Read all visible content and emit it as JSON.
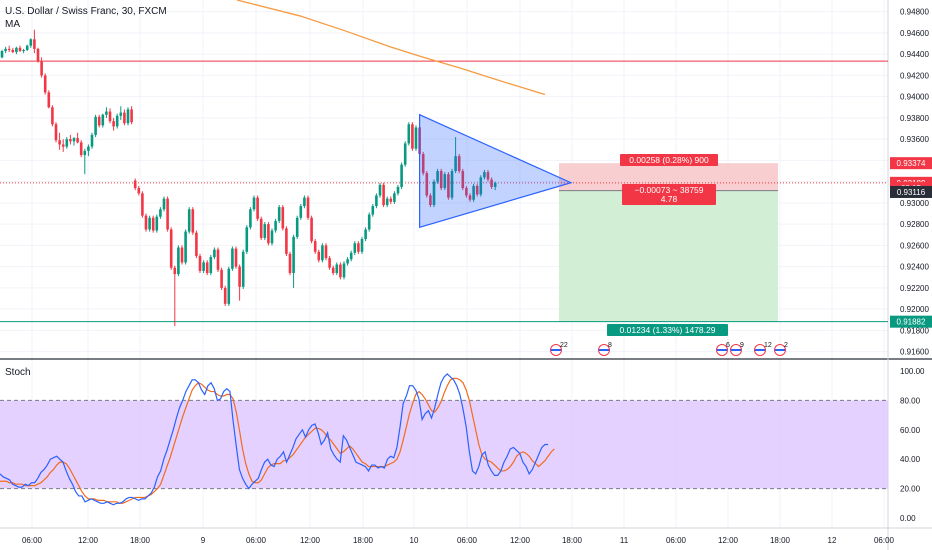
{
  "header": {
    "symbol_title": "U.S. Dollar / Swiss Franc, 30, FXCM",
    "ma_label": "MA"
  },
  "indicator": {
    "label": "Stoch"
  },
  "price_axis": {
    "labels": [
      "0.94800",
      "0.94600",
      "0.94400",
      "0.94200",
      "0.94000",
      "0.93800",
      "0.93600",
      "0.93400",
      "0.93200",
      "0.93000",
      "0.92800",
      "0.92600",
      "0.92400",
      "0.92200",
      "0.92000",
      "0.91800",
      "0.91600"
    ],
    "badges": [
      {
        "text": "0.93374",
        "color": "#f23645",
        "price": 0.93374
      },
      {
        "text": "0.93189",
        "color": "#f23645",
        "price": 0.93189
      },
      {
        "text": "08:15",
        "color": "#f23645",
        "price": 0.9314
      },
      {
        "text": "0.93116",
        "color": "#2a2e39",
        "price": 0.93103
      },
      {
        "text": "0.91882",
        "color": "#089981",
        "price": 0.91882
      }
    ]
  },
  "stoch_axis": {
    "labels": [
      "100.00",
      "80.00",
      "60.00",
      "40.00",
      "20.00",
      "0.00"
    ],
    "upper_band": 80,
    "lower_band": 20
  },
  "time_axis": {
    "labels": [
      "06:00",
      "12:00",
      "18:00",
      "9",
      "06:00",
      "12:00",
      "18:00",
      "10",
      "06:00",
      "12:00",
      "18:00",
      "11",
      "06:00",
      "12:00",
      "18:00",
      "12",
      "06:00"
    ]
  },
  "position": {
    "entry": 0.93116,
    "stop": 0.93374,
    "target": 0.91882,
    "stop_label": "0.00258 (0.28%) 900",
    "info_label": "−0.00073 ~ 38759",
    "ratio_label": "4.78",
    "target_label": "0.01234 (1.33%) 1478.29"
  },
  "horizontal_lines": {
    "resistance": 0.94335,
    "dotted_price": 0.93189
  },
  "events": [
    {
      "kind": "us",
      "count": "22"
    },
    {
      "kind": "us",
      "count": "8"
    },
    {
      "kind": "us",
      "count": "6"
    },
    {
      "kind": "us",
      "count": "9"
    },
    {
      "kind": "us",
      "count": "12"
    },
    {
      "kind": "us",
      "count": "2"
    }
  ],
  "colors": {
    "up": "#089981",
    "down": "#f23645",
    "ma": "#f59b42",
    "k_line": "#2962ff",
    "d_line": "#f26b1c",
    "band_fill": "#e1c9ff",
    "triangle": "#2962ff",
    "stop_zone": "#f7c6c9",
    "target_zone": "#cdeccf"
  },
  "chart_data": {
    "type": "candlestick",
    "timeframe": "30",
    "ohlc": [
      [
        0.9437,
        0.9444,
        0.9436,
        0.9443
      ],
      [
        0.9443,
        0.9447,
        0.9441,
        0.9445
      ],
      [
        0.9445,
        0.9448,
        0.9442,
        0.9444
      ],
      [
        0.9444,
        0.9446,
        0.9441,
        0.9442
      ],
      [
        0.9442,
        0.9447,
        0.944,
        0.9446
      ],
      [
        0.9446,
        0.9448,
        0.9442,
        0.9443
      ],
      [
        0.9443,
        0.9445,
        0.9441,
        0.9444
      ],
      [
        0.9444,
        0.9449,
        0.9443,
        0.9448
      ],
      [
        0.9448,
        0.9455,
        0.9446,
        0.9454
      ],
      [
        0.9454,
        0.9463,
        0.9441,
        0.9445
      ],
      [
        0.9445,
        0.9446,
        0.9432,
        0.9433
      ],
      [
        0.9433,
        0.9437,
        0.9418,
        0.942
      ],
      [
        0.942,
        0.9422,
        0.9402,
        0.9404
      ],
      [
        0.9404,
        0.9406,
        0.9389,
        0.939
      ],
      [
        0.939,
        0.9392,
        0.9372,
        0.9374
      ],
      [
        0.9374,
        0.9376,
        0.9357,
        0.9359
      ],
      [
        0.9359,
        0.9366,
        0.935,
        0.9355
      ],
      [
        0.9355,
        0.936,
        0.9348,
        0.9353
      ],
      [
        0.9353,
        0.9362,
        0.9351,
        0.936
      ],
      [
        0.936,
        0.9364,
        0.9355,
        0.9358
      ],
      [
        0.9358,
        0.9362,
        0.9354,
        0.9361
      ],
      [
        0.9361,
        0.9366,
        0.9356,
        0.9357
      ],
      [
        0.9357,
        0.9359,
        0.9343,
        0.9345
      ],
      [
        0.9345,
        0.9351,
        0.9327,
        0.9349
      ],
      [
        0.9349,
        0.9355,
        0.9344,
        0.9353
      ],
      [
        0.9353,
        0.9366,
        0.9351,
        0.9364
      ],
      [
        0.9364,
        0.9383,
        0.9362,
        0.9381
      ],
      [
        0.9381,
        0.9383,
        0.9371,
        0.9373
      ],
      [
        0.9373,
        0.9384,
        0.9371,
        0.9383
      ],
      [
        0.9383,
        0.939,
        0.938,
        0.9386
      ],
      [
        0.9386,
        0.9389,
        0.9375,
        0.9377
      ],
      [
        0.9377,
        0.938,
        0.9368,
        0.9372
      ],
      [
        0.9372,
        0.9384,
        0.937,
        0.9382
      ],
      [
        0.9382,
        0.9391,
        0.9378,
        0.9385
      ],
      [
        0.9385,
        0.9388,
        0.9373,
        0.9375
      ],
      [
        0.9375,
        0.939,
        0.9373,
        0.9388
      ],
      [
        0.9388,
        0.9391,
        0.9374,
        0.9376
      ],
      [
        0.9321,
        0.9323,
        0.9312,
        0.9314
      ],
      [
        0.9314,
        0.9316,
        0.9307,
        0.9309
      ],
      [
        0.9309,
        0.9311,
        0.9286,
        0.9288
      ],
      [
        0.9288,
        0.929,
        0.9273,
        0.9275
      ],
      [
        0.9275,
        0.9288,
        0.9273,
        0.9286
      ],
      [
        0.9286,
        0.9288,
        0.9272,
        0.9274
      ],
      [
        0.9274,
        0.9289,
        0.9272,
        0.9287
      ],
      [
        0.9287,
        0.9296,
        0.9285,
        0.9294
      ],
      [
        0.9294,
        0.9306,
        0.9292,
        0.9304
      ],
      [
        0.9304,
        0.9306,
        0.9273,
        0.9275
      ],
      [
        0.9275,
        0.9277,
        0.9237,
        0.9239
      ],
      [
        0.9239,
        0.9241,
        0.9184,
        0.9233
      ],
      [
        0.9233,
        0.926,
        0.9231,
        0.9258
      ],
      [
        0.9258,
        0.926,
        0.9242,
        0.9244
      ],
      [
        0.9244,
        0.9275,
        0.9242,
        0.9273
      ],
      [
        0.9273,
        0.9296,
        0.9271,
        0.9294
      ],
      [
        0.9294,
        0.9296,
        0.927,
        0.9272
      ],
      [
        0.9272,
        0.9274,
        0.9248,
        0.925
      ],
      [
        0.925,
        0.9252,
        0.9234,
        0.9236
      ],
      [
        0.9236,
        0.9246,
        0.9234,
        0.9244
      ],
      [
        0.9244,
        0.9246,
        0.9232,
        0.9234
      ],
      [
        0.9234,
        0.9251,
        0.9232,
        0.9249
      ],
      [
        0.9249,
        0.9258,
        0.9247,
        0.9256
      ],
      [
        0.9256,
        0.9258,
        0.9235,
        0.9237
      ],
      [
        0.9237,
        0.9239,
        0.9218,
        0.922
      ],
      [
        0.922,
        0.9222,
        0.9203,
        0.9205
      ],
      [
        0.9205,
        0.924,
        0.9203,
        0.9238
      ],
      [
        0.9238,
        0.9259,
        0.9236,
        0.9257
      ],
      [
        0.9257,
        0.9259,
        0.9238,
        0.924
      ],
      [
        0.924,
        0.9242,
        0.9208,
        0.9221
      ],
      [
        0.9221,
        0.9256,
        0.9219,
        0.9254
      ],
      [
        0.9254,
        0.9279,
        0.9252,
        0.9277
      ],
      [
        0.9277,
        0.9296,
        0.9275,
        0.9294
      ],
      [
        0.9294,
        0.9307,
        0.9292,
        0.9305
      ],
      [
        0.9305,
        0.9307,
        0.9283,
        0.9285
      ],
      [
        0.9285,
        0.9287,
        0.9265,
        0.9267
      ],
      [
        0.9267,
        0.9282,
        0.9265,
        0.928
      ],
      [
        0.928,
        0.9282,
        0.926,
        0.9262
      ],
      [
        0.9262,
        0.9276,
        0.926,
        0.9274
      ],
      [
        0.9274,
        0.9285,
        0.9272,
        0.9283
      ],
      [
        0.9283,
        0.9298,
        0.9281,
        0.9296
      ],
      [
        0.9296,
        0.9298,
        0.9274,
        0.9276
      ],
      [
        0.9276,
        0.9278,
        0.925,
        0.9252
      ],
      [
        0.9252,
        0.9254,
        0.9232,
        0.9234
      ],
      [
        0.9234,
        0.927,
        0.922,
        0.9268
      ],
      [
        0.9268,
        0.9288,
        0.9266,
        0.9286
      ],
      [
        0.9286,
        0.9299,
        0.9284,
        0.9297
      ],
      [
        0.9297,
        0.9307,
        0.9295,
        0.9305
      ],
      [
        0.9305,
        0.9307,
        0.9284,
        0.9286
      ],
      [
        0.9286,
        0.9288,
        0.9262,
        0.9264
      ],
      [
        0.9264,
        0.9266,
        0.9252,
        0.9254
      ],
      [
        0.9254,
        0.9256,
        0.9244,
        0.9246
      ],
      [
        0.9246,
        0.9262,
        0.9244,
        0.926
      ],
      [
        0.926,
        0.9262,
        0.9246,
        0.9248
      ],
      [
        0.9248,
        0.925,
        0.9237,
        0.9239
      ],
      [
        0.9239,
        0.9241,
        0.9232,
        0.9234
      ],
      [
        0.9234,
        0.9244,
        0.9232,
        0.9242
      ],
      [
        0.9242,
        0.9244,
        0.9228,
        0.923
      ],
      [
        0.923,
        0.9245,
        0.9228,
        0.9243
      ],
      [
        0.9243,
        0.9249,
        0.9241,
        0.9247
      ],
      [
        0.9247,
        0.9255,
        0.9245,
        0.9253
      ],
      [
        0.9253,
        0.9264,
        0.9251,
        0.9262
      ],
      [
        0.9262,
        0.9264,
        0.9252,
        0.9254
      ],
      [
        0.9254,
        0.9268,
        0.9252,
        0.9266
      ],
      [
        0.9266,
        0.9277,
        0.9264,
        0.9275
      ],
      [
        0.9275,
        0.9291,
        0.9273,
        0.9289
      ],
      [
        0.9289,
        0.9299,
        0.9287,
        0.9297
      ],
      [
        0.9297,
        0.9309,
        0.9295,
        0.9307
      ],
      [
        0.9307,
        0.9319,
        0.9305,
        0.9317
      ],
      [
        0.9317,
        0.9319,
        0.9296,
        0.9298
      ],
      [
        0.9298,
        0.9306,
        0.9296,
        0.9304
      ],
      [
        0.9304,
        0.9306,
        0.9299,
        0.9301
      ],
      [
        0.9301,
        0.9311,
        0.9299,
        0.9309
      ],
      [
        0.9309,
        0.9317,
        0.9307,
        0.9315
      ],
      [
        0.9315,
        0.9338,
        0.9313,
        0.9336
      ],
      [
        0.9336,
        0.9358,
        0.9334,
        0.9356
      ],
      [
        0.9356,
        0.9376,
        0.9354,
        0.9374
      ],
      [
        0.9374,
        0.9376,
        0.9349,
        0.9351
      ],
      [
        0.9351,
        0.9373,
        0.9349,
        0.9371
      ],
      [
        0.9371,
        0.9373,
        0.9344,
        0.9346
      ],
      [
        0.9346,
        0.9348,
        0.9326,
        0.9328
      ],
      [
        0.9328,
        0.933,
        0.9305,
        0.9307
      ],
      [
        0.9307,
        0.9309,
        0.9296,
        0.9298
      ],
      [
        0.9298,
        0.9322,
        0.9296,
        0.932
      ],
      [
        0.932,
        0.9332,
        0.9318,
        0.933
      ],
      [
        0.933,
        0.9332,
        0.9312,
        0.9314
      ],
      [
        0.9314,
        0.9329,
        0.9312,
        0.9327
      ],
      [
        0.9327,
        0.9329,
        0.9303,
        0.9305
      ],
      [
        0.9305,
        0.9332,
        0.9303,
        0.933
      ],
      [
        0.933,
        0.9362,
        0.9328,
        0.9344
      ],
      [
        0.9344,
        0.9346,
        0.9328,
        0.933
      ],
      [
        0.933,
        0.9332,
        0.9312,
        0.9314
      ],
      [
        0.9314,
        0.9316,
        0.9305,
        0.9307
      ],
      [
        0.9307,
        0.9309,
        0.9301,
        0.9303
      ],
      [
        0.9303,
        0.9318,
        0.9301,
        0.9316
      ],
      [
        0.9316,
        0.9318,
        0.9306,
        0.9308
      ],
      [
        0.9308,
        0.9326,
        0.9306,
        0.9324
      ],
      [
        0.9324,
        0.9331,
        0.9322,
        0.9329
      ],
      [
        0.9329,
        0.9331,
        0.932,
        0.9322
      ],
      [
        0.9322,
        0.9324,
        0.9313,
        0.9315
      ],
      [
        0.9315,
        0.932,
        0.9312,
        0.9319
      ]
    ],
    "ma_points": [
      [
        237,
        0.9491
      ],
      [
        300,
        0.9476
      ],
      [
        345,
        0.9462
      ],
      [
        390,
        0.9447
      ],
      [
        420,
        0.9438
      ],
      [
        460,
        0.9427
      ],
      [
        500,
        0.9415
      ],
      [
        545,
        0.9402
      ]
    ],
    "triangle": {
      "apex_index": 151,
      "start_index": 116,
      "top": 0.9383,
      "bottom": 0.9277,
      "mid": 0.9319
    },
    "stoch_k": [
      30,
      28,
      27,
      26,
      23,
      22,
      21,
      21,
      23,
      22,
      24,
      24,
      27,
      31,
      33,
      36,
      40,
      41,
      42,
      40,
      38,
      32,
      27,
      23,
      18,
      15,
      15,
      11,
      12,
      13,
      12,
      11,
      10,
      10,
      11,
      10,
      9,
      10,
      10,
      11,
      13,
      14,
      14,
      13,
      12,
      13,
      13,
      15,
      17,
      21,
      28,
      32,
      40,
      46,
      53,
      60,
      68,
      75,
      80,
      86,
      90,
      94,
      94,
      92,
      87,
      84,
      90,
      92,
      88,
      80,
      81,
      86,
      88,
      86,
      66,
      49,
      33,
      27,
      23,
      20,
      23,
      25,
      27,
      33,
      38,
      40,
      36,
      35,
      40,
      42,
      45,
      38,
      43,
      48,
      54,
      57,
      60,
      55,
      60,
      63,
      64,
      58,
      50,
      53,
      58,
      47,
      43,
      40,
      38,
      56,
      53,
      48,
      43,
      38,
      37,
      36,
      35,
      32,
      36,
      36,
      34,
      35,
      34,
      40,
      42,
      41,
      48,
      62,
      78,
      83,
      90,
      90,
      87,
      81,
      67,
      71,
      73,
      68,
      75,
      84,
      92,
      96,
      98,
      96,
      94,
      90,
      84,
      74,
      62,
      45,
      32,
      30,
      35,
      43,
      45,
      36,
      32,
      29,
      29,
      32,
      38,
      42,
      47,
      48,
      46,
      44,
      38,
      35,
      30,
      33,
      38,
      43,
      48,
      50,
      50
    ],
    "stoch_d": [
      25,
      25,
      25,
      24,
      24,
      23,
      23,
      23,
      22,
      22,
      22,
      22,
      23,
      24,
      26,
      28,
      31,
      33,
      36,
      38,
      38,
      37,
      34,
      30,
      26,
      22,
      18,
      15,
      13,
      13,
      13,
      12,
      12,
      12,
      11,
      11,
      11,
      11,
      10,
      10,
      11,
      12,
      13,
      14,
      14,
      14,
      14,
      15,
      16,
      18,
      20,
      23,
      29,
      35,
      41,
      48,
      55,
      62,
      69,
      75,
      81,
      87,
      90,
      92,
      91,
      89,
      87,
      86,
      86,
      84,
      83,
      83,
      84,
      84,
      81,
      72,
      60,
      47,
      37,
      30,
      25,
      24,
      24,
      26,
      30,
      34,
      36,
      37,
      37,
      37,
      39,
      39,
      41,
      43,
      46,
      49,
      52,
      55,
      57,
      59,
      61,
      61,
      60,
      58,
      55,
      53,
      50,
      47,
      44,
      45,
      47,
      49,
      47,
      44,
      41,
      38,
      37,
      35,
      35,
      35,
      35,
      35,
      35,
      36,
      37,
      38,
      40,
      45,
      53,
      62,
      71,
      78,
      84,
      86,
      84,
      81,
      77,
      73,
      72,
      75,
      79,
      85,
      90,
      94,
      95,
      95,
      94,
      92,
      87,
      80,
      70,
      60,
      50,
      43,
      40,
      39,
      38,
      36,
      34,
      32,
      32,
      33,
      35,
      38,
      42,
      44,
      45,
      44,
      42,
      39,
      37,
      35,
      37,
      39,
      42,
      45,
      47
    ],
    "stoch_range": [
      0,
      100
    ],
    "price_range": [
      0.9154,
      0.9491
    ],
    "x_tick_labels": [
      "06:00",
      "12:00",
      "18:00",
      "9",
      "06:00",
      "12:00",
      "18:00",
      "10",
      "06:00",
      "12:00",
      "18:00",
      "11",
      "06:00",
      "12:00",
      "18:00",
      "12",
      "06:00"
    ]
  }
}
